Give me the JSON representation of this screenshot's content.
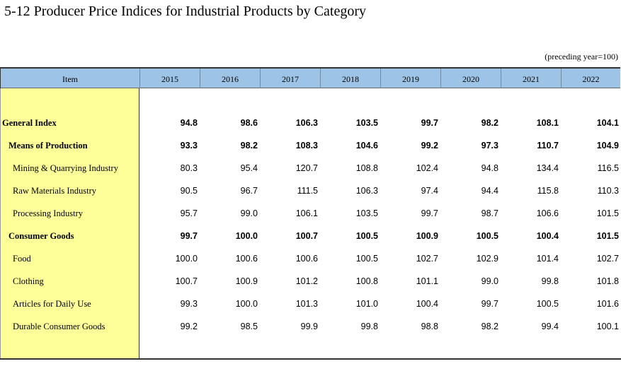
{
  "title": "5-12  Producer Price Indices for Industrial Products by Category",
  "unit_note": "(preceding year=100)",
  "headers": [
    "Item",
    "2015",
    "2016",
    "2017",
    "2018",
    "2019",
    "2020",
    "2021",
    "2022"
  ],
  "rows": [
    {
      "label": "General Index",
      "values": [
        "94.8",
        "98.6",
        "106.3",
        "103.5",
        "99.7",
        "98.2",
        "108.1",
        "104.1"
      ]
    },
    {
      "label": "Means of Production",
      "values": [
        "93.3",
        "98.2",
        "108.3",
        "104.6",
        "99.2",
        "97.3",
        "110.7",
        "104.9"
      ]
    },
    {
      "label": "Mining & Quarrying Industry",
      "values": [
        "80.3",
        "95.4",
        "120.7",
        "108.8",
        "102.4",
        "94.8",
        "134.4",
        "116.5"
      ]
    },
    {
      "label": "Raw Materials Industry",
      "values": [
        "90.5",
        "96.7",
        "111.5",
        "106.3",
        "97.4",
        "94.4",
        "115.8",
        "110.3"
      ]
    },
    {
      "label": "Processing Industry",
      "values": [
        "95.7",
        "99.0",
        "106.1",
        "103.5",
        "99.7",
        "98.7",
        "106.6",
        "101.5"
      ]
    },
    {
      "label": "Consumer Goods",
      "values": [
        "99.7",
        "100.0",
        "100.7",
        "100.5",
        "100.9",
        "100.5",
        "100.4",
        "101.5"
      ]
    },
    {
      "label": "Food",
      "values": [
        "100.0",
        "100.6",
        "100.6",
        "100.5",
        "102.7",
        "102.9",
        "101.4",
        "102.7"
      ]
    },
    {
      "label": "Clothing",
      "values": [
        "100.7",
        "100.9",
        "101.2",
        "100.8",
        "101.1",
        "99.0",
        "99.8",
        "101.8"
      ]
    },
    {
      "label": "Articles for Daily Use",
      "values": [
        "99.3",
        "100.0",
        "101.3",
        "101.0",
        "100.4",
        "99.7",
        "100.5",
        "101.6"
      ]
    },
    {
      "label": "Durable Consumer Goods",
      "values": [
        "99.2",
        "98.5",
        "99.9",
        "99.8",
        "98.8",
        "98.2",
        "99.4",
        "100.1"
      ]
    }
  ]
}
